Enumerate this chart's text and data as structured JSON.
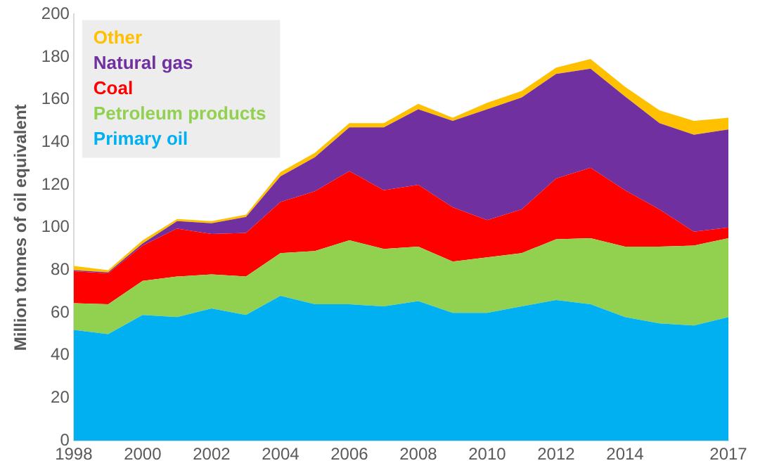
{
  "chart_data": {
    "type": "area",
    "stacked": true,
    "ylabel": "Million tonnes of oil equivalent",
    "x": [
      1998,
      1999,
      2000,
      2001,
      2002,
      2003,
      2004,
      2005,
      2006,
      2007,
      2008,
      2009,
      2010,
      2011,
      2012,
      2013,
      2014,
      2015,
      2016,
      2017
    ],
    "xlim": [
      1998,
      2017
    ],
    "xticks": [
      1998,
      2000,
      2002,
      2004,
      2006,
      2008,
      2010,
      2012,
      2014,
      2017
    ],
    "ylim": [
      0,
      200
    ],
    "yticks": [
      0,
      20,
      40,
      60,
      80,
      100,
      120,
      140,
      160,
      180,
      200
    ],
    "grid": false,
    "legend": "top left",
    "series": [
      {
        "name": "Primary oil",
        "color": "#00b0f0",
        "values": [
          52,
          50,
          59,
          58,
          62,
          59,
          68,
          64,
          64,
          63,
          65.5,
          60,
          60,
          63,
          66,
          64,
          58,
          55,
          54,
          58
        ]
      },
      {
        "name": "Petroleum products",
        "color": "#92d050",
        "values": [
          12.5,
          14,
          16,
          19,
          16,
          18,
          20,
          25,
          30,
          27,
          25.5,
          24,
          26,
          25,
          28.5,
          31,
          33,
          36,
          37.5,
          37
        ]
      },
      {
        "name": "Coal",
        "color": "#ff0000",
        "values": [
          15,
          14.5,
          16.5,
          22.5,
          19,
          20.5,
          24,
          28,
          32.5,
          27.5,
          29,
          25.5,
          17.5,
          20.5,
          28.5,
          33,
          26.5,
          17.5,
          6.5,
          5
        ]
      },
      {
        "name": "Natural gas",
        "color": "#7030a0",
        "values": [
          0.5,
          0.5,
          1,
          3.5,
          5,
          7.5,
          12,
          16,
          20.5,
          29.5,
          35.5,
          40.5,
          52,
          52.5,
          49,
          46.5,
          44,
          40.5,
          45.5,
          46
        ]
      },
      {
        "name": "Other",
        "color": "#ffc000",
        "values": [
          2,
          1,
          1.5,
          1,
          1,
          1,
          2,
          2,
          2,
          2,
          2.5,
          1.5,
          3,
          3,
          3,
          4.5,
          4.5,
          6,
          6.5,
          5.5
        ]
      }
    ]
  }
}
